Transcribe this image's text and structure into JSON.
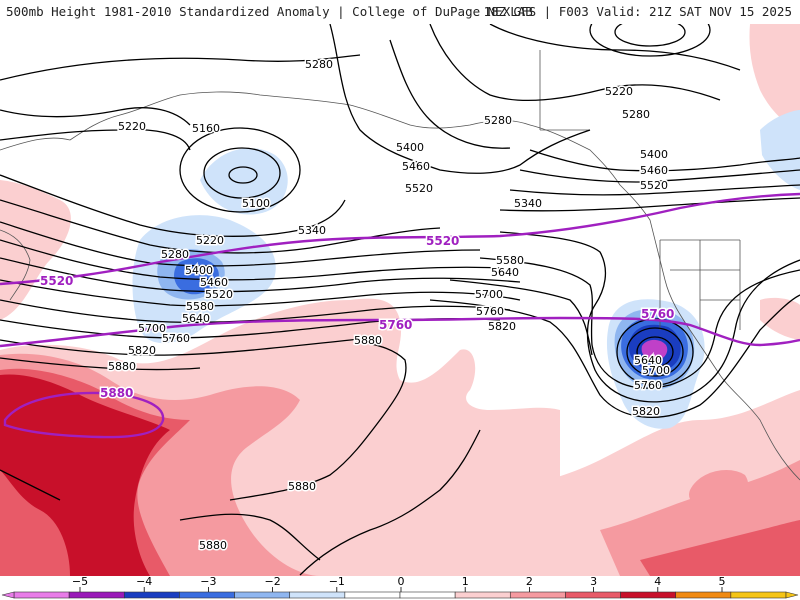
{
  "header": {
    "left_title": "500mb Height 1981-2010 Standardized Anomaly | College of DuPage NEXLAB",
    "right_title": "18Z GFS | F003 Valid: 21Z SAT NOV 15 2025"
  },
  "contour_labels": [
    {
      "id": "c1",
      "text": "5280"
    },
    {
      "id": "c2",
      "text": "5220"
    },
    {
      "id": "c3",
      "text": "5160"
    },
    {
      "id": "c4",
      "text": "5100"
    },
    {
      "id": "c5",
      "text": "5340"
    },
    {
      "id": "c6",
      "text": "5220"
    },
    {
      "id": "c7",
      "text": "5280"
    },
    {
      "id": "c8",
      "text": "5400"
    },
    {
      "id": "c9",
      "text": "5460"
    },
    {
      "id": "c10",
      "text": "5520"
    },
    {
      "id": "c11",
      "text": "5580"
    },
    {
      "id": "c12",
      "text": "5640"
    },
    {
      "id": "c13",
      "text": "5700"
    },
    {
      "id": "c14",
      "text": "5760"
    },
    {
      "id": "c15",
      "text": "5820"
    },
    {
      "id": "c16",
      "text": "5880"
    },
    {
      "id": "c17",
      "text": "5280"
    },
    {
      "id": "c18",
      "text": "5400"
    },
    {
      "id": "c19",
      "text": "5460"
    },
    {
      "id": "c20",
      "text": "5520"
    },
    {
      "id": "c21",
      "text": "5340"
    },
    {
      "id": "c22",
      "text": "5580"
    },
    {
      "id": "c23",
      "text": "5640"
    },
    {
      "id": "c24",
      "text": "5700"
    },
    {
      "id": "c25",
      "text": "5760"
    },
    {
      "id": "c26",
      "text": "5820"
    },
    {
      "id": "c27",
      "text": "5880"
    },
    {
      "id": "c28",
      "text": "5220"
    },
    {
      "id": "c29",
      "text": "5280"
    },
    {
      "id": "c30",
      "text": "5400"
    },
    {
      "id": "c31",
      "text": "5460"
    },
    {
      "id": "c32",
      "text": "5520"
    },
    {
      "id": "c33",
      "text": "5640"
    },
    {
      "id": "c34",
      "text": "5700"
    },
    {
      "id": "c35",
      "text": "5760"
    },
    {
      "id": "c36",
      "text": "5820"
    },
    {
      "id": "c37",
      "text": "5880"
    },
    {
      "id": "c38",
      "text": "5880"
    }
  ],
  "magenta_labels": [
    {
      "id": "m1",
      "text": "5520"
    },
    {
      "id": "m2",
      "text": "5520"
    },
    {
      "id": "m3",
      "text": "5760"
    },
    {
      "id": "m4",
      "text": "5760"
    },
    {
      "id": "m5",
      "text": "5880"
    }
  ],
  "colorbar": {
    "ticks": [
      "−5",
      "−4",
      "−3",
      "−2",
      "−1",
      "0",
      "1",
      "2",
      "3",
      "4",
      "5"
    ],
    "colors": [
      "#e87ce8",
      "#9a1ab8",
      "#1a3dc0",
      "#3a6de0",
      "#8fb6f0",
      "#cfe3fa",
      "#ffffff",
      "#ffffff",
      "#fbcfd0",
      "#f59aa0",
      "#e85a68",
      "#c8102a",
      "#f08a12",
      "#f5c517"
    ]
  },
  "colors": {
    "magenta": "#a020c0",
    "anom_neg1": "#cfe3fa",
    "anom_neg2": "#8fb6f0",
    "anom_neg3": "#3a6de0",
    "anom_neg4": "#1a3dc0",
    "anom_neg5": "#c040c8",
    "anom_pos1": "#fbcfd0",
    "anom_pos2": "#f59aa0",
    "anom_pos3": "#e85a68",
    "anom_pos4": "#c8102a",
    "anom_pos5": "#f08a12"
  }
}
